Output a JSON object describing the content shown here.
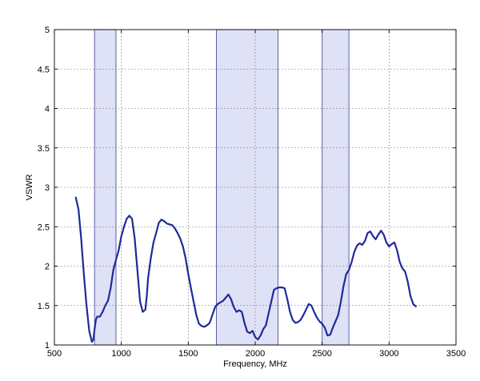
{
  "chart_data": {
    "type": "line",
    "title": "",
    "xlabel": "Frequency, MHz",
    "ylabel": "VSWR",
    "xlim": [
      500,
      3500
    ],
    "ylim": [
      1,
      5
    ],
    "xticks": [
      500,
      1000,
      1500,
      2000,
      2500,
      3000,
      3500
    ],
    "yticks": [
      1,
      1.5,
      2,
      2.5,
      3,
      3.5,
      4,
      4.5,
      5
    ],
    "grid": true,
    "highlight_bands": [
      [
        800,
        960
      ],
      [
        1710,
        2170
      ],
      [
        2500,
        2700
      ]
    ],
    "colors": {
      "line": "#1f2a9a",
      "band_fill": "#dfe1f7",
      "band_edge": "#4b53a3"
    },
    "series": [
      {
        "x": [
          660,
          680,
          700,
          720,
          740,
          760,
          780,
          790,
          800,
          810,
          820,
          840,
          860,
          880,
          900,
          920,
          940,
          960,
          980,
          1000,
          1020,
          1040,
          1060,
          1080,
          1100,
          1120,
          1140,
          1160,
          1180,
          1190,
          1200,
          1220,
          1240,
          1260,
          1280,
          1300,
          1320,
          1340,
          1360,
          1380,
          1400,
          1420,
          1440,
          1460,
          1480,
          1500,
          1520,
          1540,
          1560,
          1580,
          1600,
          1620,
          1640,
          1660,
          1680,
          1700,
          1720,
          1740,
          1760,
          1780,
          1800,
          1820,
          1840,
          1860,
          1880,
          1900,
          1920,
          1940,
          1960,
          1980,
          2000,
          2020,
          2040,
          2060,
          2080,
          2100,
          2120,
          2140,
          2160,
          2180,
          2200,
          2220,
          2240,
          2260,
          2280,
          2300,
          2320,
          2340,
          2360,
          2380,
          2400,
          2420,
          2440,
          2460,
          2480,
          2500,
          2520,
          2540,
          2560,
          2580,
          2600,
          2620,
          2640,
          2660,
          2680,
          2700,
          2720,
          2740,
          2760,
          2780,
          2800,
          2820,
          2840,
          2860,
          2880,
          2900,
          2920,
          2940,
          2960,
          2980,
          3000,
          3020,
          3040,
          3060,
          3080,
          3100,
          3120,
          3140,
          3160,
          3180,
          3200
        ],
        "values": [
          2.87,
          2.72,
          2.35,
          1.9,
          1.5,
          1.18,
          1.04,
          1.06,
          1.2,
          1.32,
          1.36,
          1.36,
          1.42,
          1.5,
          1.56,
          1.72,
          1.95,
          2.08,
          2.2,
          2.38,
          2.5,
          2.6,
          2.64,
          2.6,
          2.35,
          1.95,
          1.55,
          1.42,
          1.45,
          1.62,
          1.85,
          2.1,
          2.3,
          2.42,
          2.55,
          2.59,
          2.57,
          2.54,
          2.53,
          2.52,
          2.48,
          2.42,
          2.35,
          2.25,
          2.1,
          1.9,
          1.72,
          1.55,
          1.38,
          1.27,
          1.24,
          1.23,
          1.25,
          1.28,
          1.38,
          1.48,
          1.52,
          1.54,
          1.56,
          1.6,
          1.64,
          1.58,
          1.48,
          1.42,
          1.44,
          1.42,
          1.28,
          1.17,
          1.15,
          1.18,
          1.1,
          1.07,
          1.12,
          1.2,
          1.25,
          1.4,
          1.55,
          1.7,
          1.72,
          1.73,
          1.73,
          1.72,
          1.58,
          1.42,
          1.32,
          1.28,
          1.29,
          1.32,
          1.38,
          1.45,
          1.52,
          1.5,
          1.42,
          1.35,
          1.3,
          1.27,
          1.22,
          1.12,
          1.13,
          1.22,
          1.3,
          1.38,
          1.55,
          1.75,
          1.9,
          1.95,
          2.05,
          2.18,
          2.26,
          2.29,
          2.27,
          2.32,
          2.42,
          2.44,
          2.38,
          2.34,
          2.4,
          2.45,
          2.4,
          2.3,
          2.25,
          2.28,
          2.3,
          2.2,
          2.05,
          1.97,
          1.93,
          1.8,
          1.62,
          1.52,
          1.49
        ]
      }
    ]
  }
}
